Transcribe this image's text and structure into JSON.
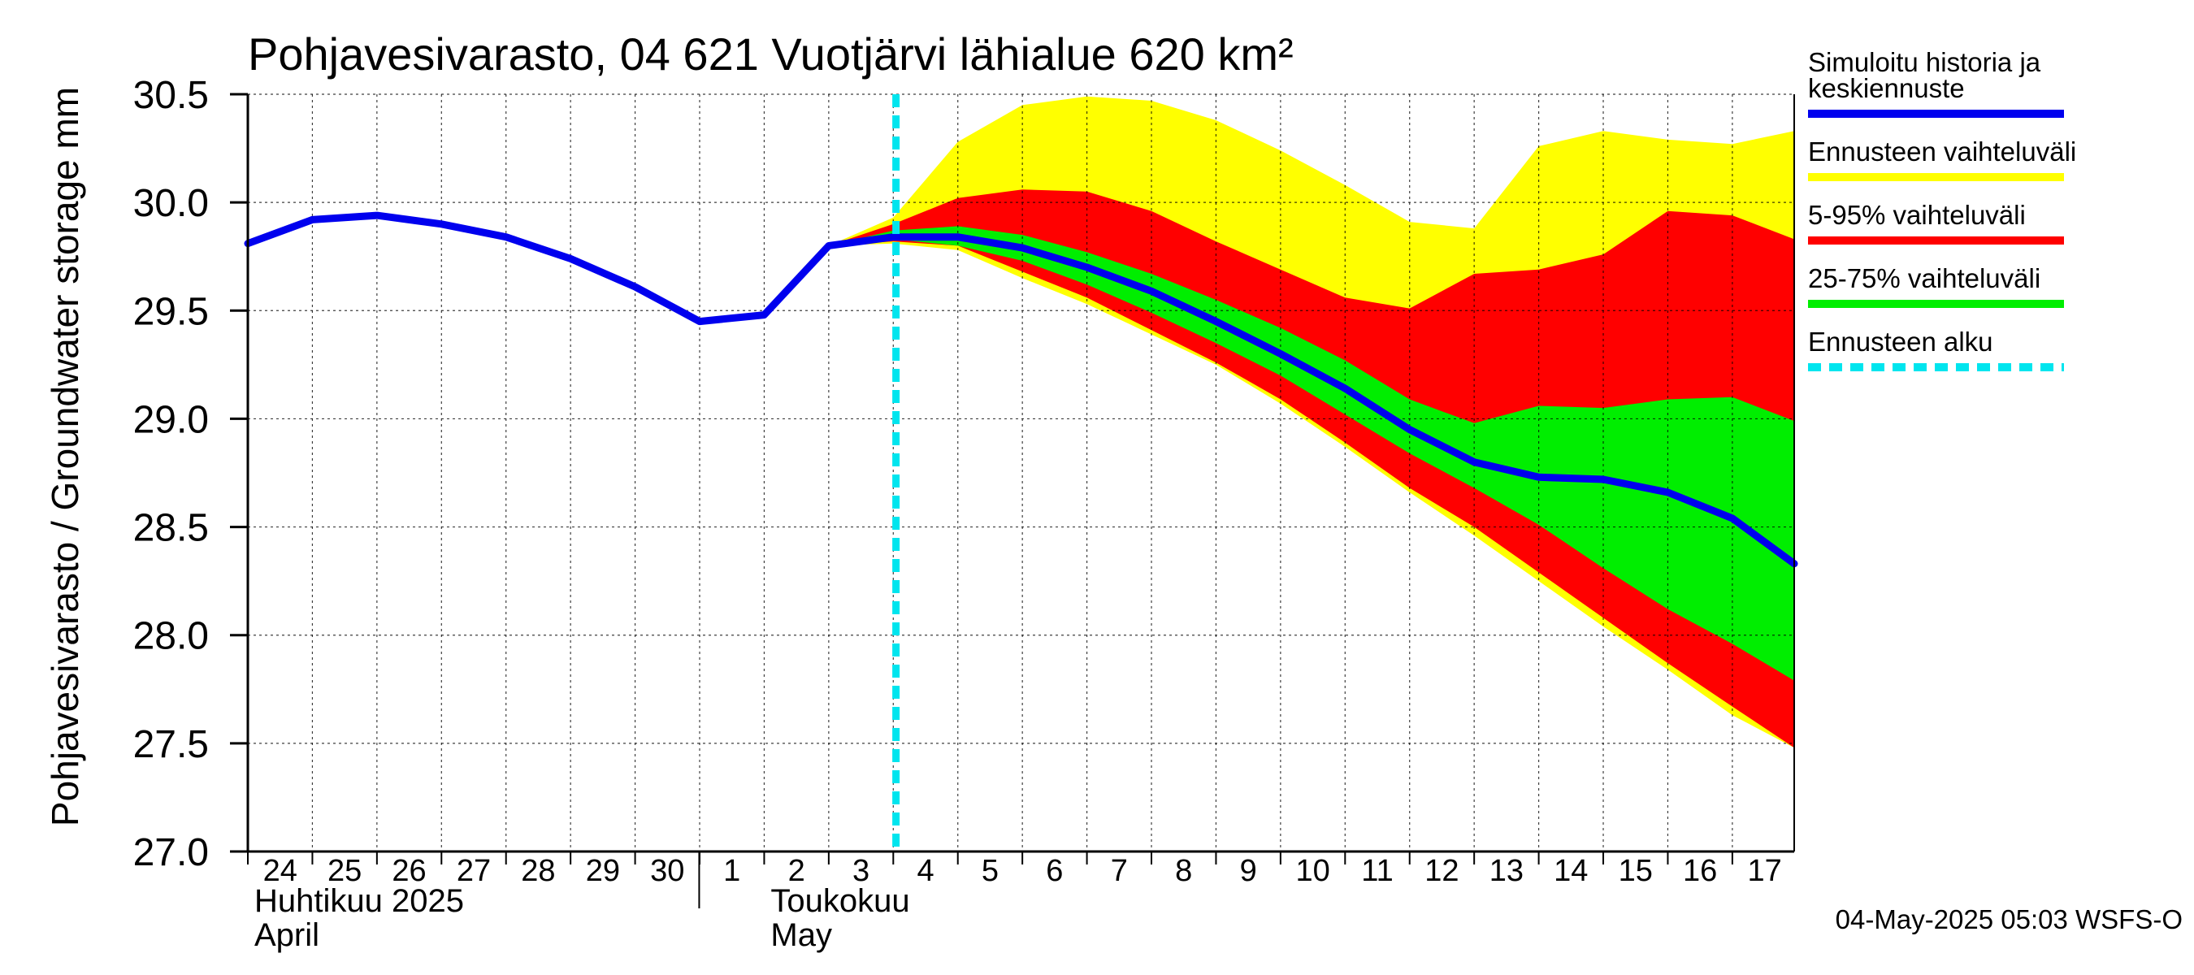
{
  "chart_data": {
    "type": "area",
    "title": "Pohjavesivarasto, 04 621 Vuotjärvi lähialue 620 km²",
    "ylabel": "Pohjavesivarasto / Groundwater storage   mm",
    "ylim": [
      27.0,
      30.5
    ],
    "xlim": [
      "2025-04-24",
      "2025-05-17T23:00"
    ],
    "y_ticks": [
      "27.0",
      "27.5",
      "28.0",
      "28.5",
      "29.0",
      "29.5",
      "30.0",
      "30.5"
    ],
    "x_ticks": [
      "24",
      "25",
      "26",
      "27",
      "28",
      "29",
      "30",
      "1",
      "2",
      "3",
      "4",
      "5",
      "6",
      "7",
      "8",
      "9",
      "10",
      "11",
      "12",
      "13",
      "14",
      "15",
      "16",
      "17"
    ],
    "month_labels": [
      {
        "line1": "Huhtikuu  2025",
        "line2": "April",
        "start": "2025-04-24"
      },
      {
        "line1": "Toukokuu",
        "line2": "May",
        "start": "2025-05-02"
      }
    ],
    "forecast_start": "2025-05-04T01:00",
    "grid": true,
    "legend_position": "right",
    "series": [
      {
        "name": "Ennusteen vaihteluväli",
        "kind": "band",
        "color": "#ffff00",
        "x": [
          "2025-05-03",
          "2025-05-04",
          "2025-05-05",
          "2025-05-06",
          "2025-05-07",
          "2025-05-08",
          "2025-05-09",
          "2025-05-10",
          "2025-05-11",
          "2025-05-12",
          "2025-05-13",
          "2025-05-14",
          "2025-05-15",
          "2025-05-16",
          "2025-05-17",
          "2025-05-17T23:00"
        ],
        "upper": [
          29.8,
          29.93,
          30.28,
          30.45,
          30.49,
          30.47,
          30.38,
          30.24,
          30.08,
          29.91,
          29.88,
          30.26,
          30.33,
          30.29,
          30.27,
          30.33
        ],
        "lower": [
          29.8,
          29.81,
          29.78,
          29.65,
          29.53,
          29.39,
          29.25,
          29.07,
          28.87,
          28.66,
          28.46,
          28.25,
          28.04,
          27.84,
          27.63,
          27.48
        ]
      },
      {
        "name": "5-95% vaihteluväli",
        "kind": "band",
        "color": "#ff0000",
        "x": [
          "2025-05-03",
          "2025-05-04",
          "2025-05-05",
          "2025-05-06",
          "2025-05-07",
          "2025-05-08",
          "2025-05-09",
          "2025-05-10",
          "2025-05-11",
          "2025-05-12",
          "2025-05-13",
          "2025-05-14",
          "2025-05-15",
          "2025-05-16",
          "2025-05-17",
          "2025-05-17T23:00"
        ],
        "upper": [
          29.8,
          29.9,
          30.02,
          30.06,
          30.05,
          29.96,
          29.82,
          29.69,
          29.56,
          29.51,
          29.67,
          29.69,
          29.76,
          29.96,
          29.94,
          29.83
        ],
        "lower": [
          29.8,
          29.82,
          29.8,
          29.68,
          29.56,
          29.41,
          29.26,
          29.09,
          28.89,
          28.68,
          28.5,
          28.29,
          28.08,
          27.87,
          27.67,
          27.48
        ]
      },
      {
        "name": "25-75% vaihteluväli",
        "kind": "band",
        "color": "#00ee00",
        "x": [
          "2025-05-03",
          "2025-05-04",
          "2025-05-05",
          "2025-05-06",
          "2025-05-07",
          "2025-05-08",
          "2025-05-09",
          "2025-05-10",
          "2025-05-11",
          "2025-05-12",
          "2025-05-13",
          "2025-05-14",
          "2025-05-15",
          "2025-05-16",
          "2025-05-17",
          "2025-05-17T23:00"
        ],
        "upper": [
          29.8,
          29.87,
          29.89,
          29.85,
          29.77,
          29.67,
          29.55,
          29.42,
          29.27,
          29.09,
          28.98,
          29.06,
          29.05,
          29.09,
          29.1,
          28.99
        ],
        "lower": [
          29.8,
          29.83,
          29.8,
          29.73,
          29.62,
          29.49,
          29.35,
          29.2,
          29.02,
          28.84,
          28.68,
          28.51,
          28.31,
          28.12,
          27.96,
          27.79
        ]
      },
      {
        "name": "Simuloitu historia ja keskiennuste",
        "kind": "line",
        "color": "#0000ee",
        "x": [
          "2025-04-24",
          "2025-04-25",
          "2025-04-26",
          "2025-04-27",
          "2025-04-28",
          "2025-04-29",
          "2025-04-30",
          "2025-05-01",
          "2025-05-02",
          "2025-05-03",
          "2025-05-04",
          "2025-05-05",
          "2025-05-06",
          "2025-05-07",
          "2025-05-08",
          "2025-05-09",
          "2025-05-10",
          "2025-05-11",
          "2025-05-12",
          "2025-05-13",
          "2025-05-14",
          "2025-05-15",
          "2025-05-16",
          "2025-05-17",
          "2025-05-17T23:00"
        ],
        "values": [
          29.81,
          29.92,
          29.94,
          29.9,
          29.84,
          29.74,
          29.61,
          29.45,
          29.48,
          29.8,
          29.84,
          29.84,
          29.79,
          29.7,
          29.59,
          29.45,
          29.3,
          29.14,
          28.95,
          28.8,
          28.73,
          28.72,
          28.66,
          28.54,
          28.33
        ]
      },
      {
        "name": "Ennusteen alku",
        "kind": "vline",
        "color": "#00e5ee"
      }
    ],
    "legend": [
      {
        "label": "Simuloitu historia ja keskiennuste",
        "line1": "Simuloitu historia ja",
        "line2": "keskiennuste",
        "color": "#0000ee",
        "style": "solid"
      },
      {
        "label": "Ennusteen vaihteluväli",
        "color": "#ffff00",
        "style": "solid"
      },
      {
        "label": "5-95% vaihteluväli",
        "color": "#ff0000",
        "style": "solid"
      },
      {
        "label": "25-75% vaihteluväli",
        "color": "#00ee00",
        "style": "solid"
      },
      {
        "label": "Ennusteen alku",
        "color": "#00e5ee",
        "style": "dashed"
      }
    ],
    "footer": "04-May-2025 05:03 WSFS-O"
  }
}
